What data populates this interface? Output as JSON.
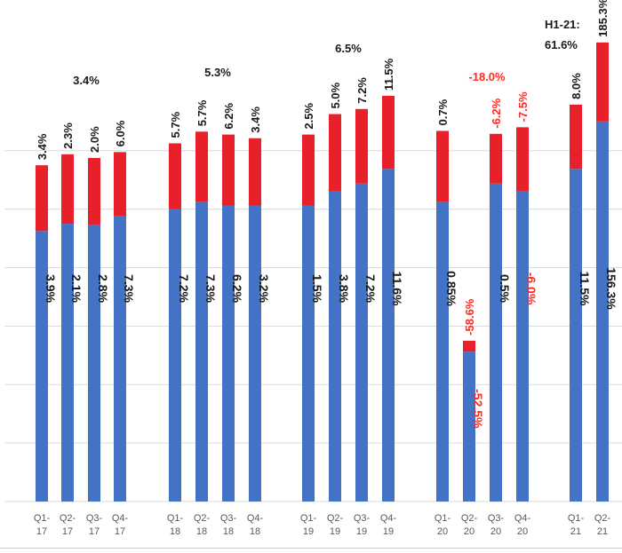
{
  "chart_data": {
    "type": "bar",
    "stacked": true,
    "grid": true,
    "legend": "none",
    "colors": {
      "base": "#4472C4",
      "top": "#E8202A",
      "label_dark": "#1a1a1a",
      "label_red": "#ff2a1f"
    },
    "categories": [
      "Q1-17",
      "Q2-17",
      "Q3-17",
      "Q4-17",
      "Q1-18",
      "Q2-18",
      "Q3-18",
      "Q4-18",
      "Q1-19",
      "Q2-19",
      "Q3-19",
      "Q4-19",
      "Q1-20",
      "Q2-20",
      "Q3-20",
      "Q4-20",
      "Q1-21",
      "Q2-21"
    ],
    "tick_labels": [
      [
        "Q1-",
        "17"
      ],
      [
        "Q2-",
        "17"
      ],
      [
        "Q3-",
        "17"
      ],
      [
        "Q4-",
        "17"
      ],
      [
        "Q1-",
        "18"
      ],
      [
        "Q2-",
        "18"
      ],
      [
        "Q3-",
        "18"
      ],
      [
        "Q4-",
        "18"
      ],
      [
        "Q1-",
        "19"
      ],
      [
        "Q2-",
        "19"
      ],
      [
        "Q3-",
        "19"
      ],
      [
        "Q4-",
        "19"
      ],
      [
        "Q1-",
        "20"
      ],
      [
        "Q2-",
        "20"
      ],
      [
        "Q3-",
        "20"
      ],
      [
        "Q4-",
        "20"
      ],
      [
        "Q1-",
        "21"
      ],
      [
        "Q2-",
        "21"
      ]
    ],
    "ylim": [
      0,
      680
    ],
    "series": [
      {
        "values": [
          370,
          380,
          378,
          390,
          400,
          410,
          405,
          405,
          405,
          425,
          435,
          455,
          410,
          205,
          435,
          425,
          455,
          520
        ]
      },
      {
        "values": [
          90,
          95,
          92,
          88,
          90,
          96,
          97,
          92,
          97,
          105,
          102,
          100,
          97,
          15,
          68,
          87,
          88,
          108
        ]
      }
    ],
    "base_labels": [
      "3.9%",
      "2.1%",
      "2.8%",
      "7.3%",
      "7.2%",
      "7.3%",
      "6.2%",
      "3.2%",
      "1.5%",
      "3.8%",
      "7.2%",
      "11.6%",
      "0.85%",
      "-52.5%",
      "0.5%",
      "-6.0%",
      "11.5%",
      "156.3%"
    ],
    "top_labels": [
      "3.4%",
      "2.3%",
      "2.0%",
      "6.0%",
      "5.7%",
      "5.7%",
      "6.2%",
      "3.4%",
      "2.5%",
      "5.0%",
      "7.2%",
      "11.5%",
      "0.7%",
      "-58.6%",
      "-6.2%",
      "-7.5%",
      "8.0%",
      "185.3%"
    ],
    "base_label_red": [
      false,
      false,
      false,
      false,
      false,
      false,
      false,
      false,
      false,
      false,
      false,
      false,
      false,
      true,
      false,
      true,
      false,
      false
    ],
    "top_label_red": [
      false,
      false,
      false,
      false,
      false,
      false,
      false,
      false,
      false,
      false,
      false,
      false,
      false,
      true,
      true,
      true,
      false,
      false
    ],
    "annotations": [
      {
        "text": "3.4%",
        "group": 0,
        "red": false
      },
      {
        "text": "5.3%",
        "group": 1,
        "red": false
      },
      {
        "text": "6.5%",
        "group": 2,
        "red": false
      },
      {
        "text": "-18.0%",
        "group": 3,
        "red": true
      },
      {
        "text": "H1-21:",
        "group": 4,
        "red": false
      },
      {
        "text": "61.6%",
        "group": 4,
        "red": false
      }
    ]
  }
}
